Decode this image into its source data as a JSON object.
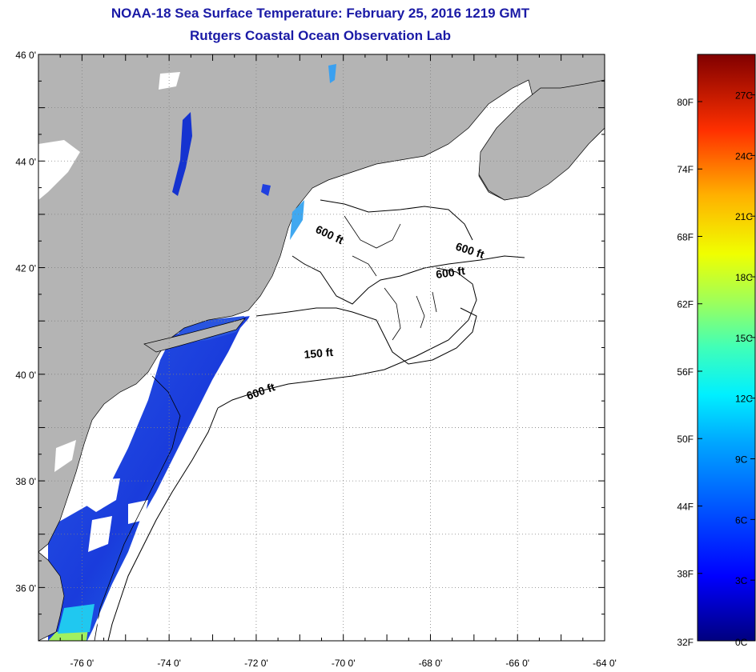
{
  "header": {
    "title": "NOAA-18 Sea Surface Temperature:  February 25, 2016 1219 GMT",
    "subtitle": "Rutgers Coastal Ocean Observation Lab"
  },
  "map": {
    "lat_labels": [
      "46 0'",
      "44 0'",
      "42 0'",
      "40 0'",
      "38 0'",
      "36 0'"
    ],
    "lon_labels": [
      "-76 0'",
      "-74 0'",
      "-72 0'",
      "-70 0'",
      "-68 0'",
      "-66 0'",
      "-64 0'"
    ],
    "contour_labels": [
      {
        "text": "600 ft",
        "id": "gulf-of-maine-600"
      },
      {
        "text": "600 ft",
        "id": "georges-north-600"
      },
      {
        "text": "600 ft",
        "id": "georges-east-600"
      },
      {
        "text": "150 ft",
        "id": "nantucket-150"
      },
      {
        "text": "600 ft",
        "id": "shelf-break-600"
      }
    ],
    "colors": {
      "land": "#b4b4b4",
      "no_data": "#ffffff",
      "grid": "#808080"
    }
  },
  "colorbar": {
    "fahrenheit_labels": [
      "80F",
      "74F",
      "68F",
      "62F",
      "56F",
      "50F",
      "44F",
      "38F",
      "32F"
    ],
    "celsius_labels": [
      "27C",
      "24C",
      "21C",
      "18C",
      "15C",
      "12C",
      "9C",
      "6C",
      "3C",
      "0C"
    ],
    "range_c": [
      0,
      29
    ]
  }
}
